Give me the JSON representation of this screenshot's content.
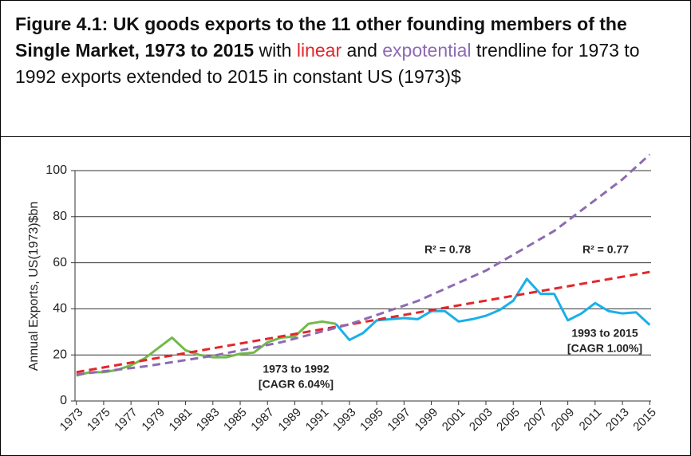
{
  "chart_data": {
    "type": "line",
    "title": "Figure 4.1: UK goods exports to the 11 other founding members of the Single Market, 1973 to 2015",
    "subtitle_parts": [
      " with ",
      "linear",
      " and ",
      "expotential",
      " trendline for 1973 to 1992 exports extended to 2015 in constant US (1973)$"
    ],
    "y_label": "Annual Exports, US(1973)$bn",
    "xlim": [
      1972.9,
      2015.1
    ],
    "xticks": [
      1973,
      1975,
      1977,
      1979,
      1981,
      1983,
      1985,
      1987,
      1989,
      1991,
      1993,
      1995,
      1997,
      1999,
      2001,
      2003,
      2005,
      2007,
      2009,
      2011,
      2013,
      2015
    ],
    "ylim": [
      0,
      100
    ],
    "yticks": [
      0,
      20,
      40,
      60,
      80,
      100
    ],
    "grid": true,
    "series": [
      {
        "color": "#72b94b",
        "dashed": false,
        "x": [
          1973,
          1974,
          1975,
          1976,
          1977,
          1978,
          1979,
          1980,
          1981,
          1982,
          1983,
          1984,
          1985,
          1986,
          1987,
          1988,
          1989,
          1990,
          1991,
          1992
        ],
        "values": [
          11,
          12.5,
          12.5,
          13.5,
          15.5,
          18.5,
          23,
          27.5,
          22,
          20,
          19,
          19,
          20.5,
          21,
          25.5,
          27.5,
          28,
          33.5,
          34.5,
          33.5
        ]
      },
      {
        "color": "#1ab0e8",
        "dashed": false,
        "x": [
          1992,
          1993,
          1994,
          1995,
          1996,
          1997,
          1998,
          1999,
          2000,
          2001,
          2002,
          2003,
          2004,
          2005,
          2006,
          2007,
          2008,
          2009,
          2010,
          2011,
          2012,
          2013,
          2014,
          2015
        ],
        "values": [
          33.5,
          26.5,
          29.5,
          35,
          35.5,
          36,
          35.5,
          39,
          39,
          34.5,
          35.5,
          37,
          39.5,
          43.5,
          53,
          46.5,
          46.5,
          35,
          38,
          42.5,
          39,
          38,
          38.5,
          33
        ]
      },
      {
        "color": "#e3262b",
        "dashed": true,
        "x": [
          1973,
          2015
        ],
        "values": [
          12.5,
          56
        ]
      },
      {
        "color": "#8d6bb1",
        "dashed": true,
        "x": [
          1973,
          1978,
          1983,
          1988,
          1993,
          1998,
          2003,
          2008,
          2013,
          2015
        ],
        "values": [
          11.5,
          15,
          19.6,
          25.5,
          33.3,
          43.4,
          56.6,
          73.8,
          96.2,
          107
        ]
      }
    ],
    "annotations": [
      {
        "text": "R² = 0.78",
        "color": "#8d6bb1"
      },
      {
        "text": "R² = 0.77",
        "color": "#e3262b"
      },
      {
        "text": "1973 to 1992",
        "color": "#72b94b"
      },
      {
        "text": "[CAGR 6.04%]",
        "color": "#72b94b"
      },
      {
        "text": "1993 to 2015",
        "color": "#1ab0e8"
      },
      {
        "text": "[CAGR 1.00%]",
        "color": "#1ab0e8"
      }
    ]
  }
}
